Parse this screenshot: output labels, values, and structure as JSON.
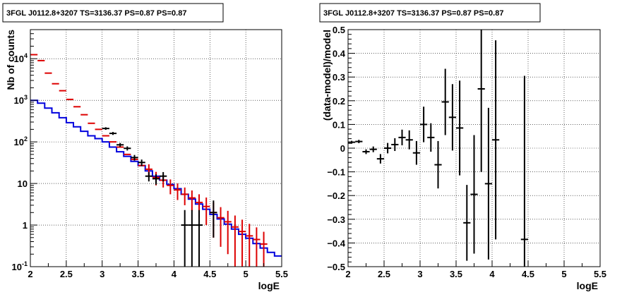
{
  "chart_data": [
    {
      "type": "scatter",
      "title": "3FGL J0112.8+3207 TS=3136.37 PS=0.87 PS=0.87",
      "xlabel": "logE",
      "ylabel": "Nb of counts",
      "xlim": [
        2,
        5.5
      ],
      "ylim": [
        0.1,
        50000
      ],
      "yscale": "log",
      "grid": true,
      "x_ticks": [
        2,
        2.5,
        3,
        3.5,
        4,
        4.5,
        5,
        5.5
      ],
      "x_tick_labels": [
        "2",
        "2.5",
        "3",
        "3.5",
        "4",
        "4.5",
        "5",
        "5.5"
      ],
      "y_ticks": [
        0.1,
        1,
        10,
        100,
        1000,
        10000
      ],
      "y_tick_labels": [
        {
          "base": "10",
          "exp": "-1"
        },
        {
          "base": "1",
          "exp": ""
        },
        {
          "base": "10",
          "exp": ""
        },
        {
          "base": "10",
          "exp": "2"
        },
        {
          "base": "10",
          "exp": "3"
        },
        {
          "base": "10",
          "exp": "4"
        }
      ],
      "series": [
        {
          "color": "#0000dd",
          "style": "step",
          "bin_width": 0.1,
          "x": [
            2.05,
            2.15,
            2.25,
            2.35,
            2.45,
            2.55,
            2.65,
            2.75,
            2.85,
            2.95,
            3.05,
            3.15,
            3.25,
            3.35,
            3.45,
            3.55,
            3.65,
            3.75,
            3.85,
            3.95,
            4.05,
            4.15,
            4.25,
            4.35,
            4.45,
            4.55,
            4.65,
            4.75,
            4.85,
            4.95,
            5.05,
            5.15,
            5.25,
            5.35,
            5.45
          ],
          "y": [
            1000,
            850,
            650,
            500,
            380,
            290,
            230,
            180,
            140,
            120,
            100,
            75,
            58,
            45,
            34,
            27,
            20,
            15,
            12,
            9.5,
            7.5,
            5.5,
            4.2,
            3.2,
            2.4,
            1.8,
            1.4,
            1.05,
            0.8,
            0.6,
            0.48,
            0.36,
            0.28,
            0.22,
            0.18
          ]
        },
        {
          "color": "#dd0000",
          "style": "errorbar",
          "x": [
            2.05,
            2.15,
            2.25,
            2.35,
            2.45,
            2.55,
            2.65,
            2.75,
            2.85,
            2.95,
            3.05,
            3.15,
            3.25,
            3.35,
            3.45,
            3.55,
            3.65,
            3.75,
            3.85,
            3.95,
            4.05,
            4.15,
            4.25,
            4.35,
            4.45,
            4.55,
            4.65,
            4.75,
            4.85,
            4.95,
            5.05,
            5.15,
            5.25
          ],
          "y": [
            12500,
            9000,
            4500,
            2500,
            1700,
            1050,
            700,
            450,
            280,
            200,
            140,
            100,
            75,
            50,
            38,
            27,
            22,
            14,
            12,
            9,
            7,
            5.5,
            4.5,
            3.5,
            2.8,
            2,
            1.5,
            1.2,
            0.9,
            0.7,
            0.55,
            0.45,
            0.35
          ],
          "err_low": [
            0,
            0,
            0,
            0,
            0,
            0,
            0,
            0,
            0,
            0,
            0,
            0,
            0,
            0,
            0,
            0,
            7,
            5,
            4,
            3.5,
            3,
            2.5,
            2.3,
            2,
            1.8,
            1.5,
            1.2,
            1.0,
            0.8,
            0.65,
            0.52,
            0.43,
            0.34
          ],
          "err_high": [
            0,
            0,
            0,
            0,
            0,
            0,
            0,
            0,
            0,
            0,
            0,
            0,
            0,
            0,
            0,
            0,
            7,
            5,
            4,
            3.5,
            3,
            2.5,
            2.3,
            2,
            1.8,
            1.5,
            1.2,
            1.0,
            0.8,
            0.65,
            0.52,
            0.43,
            0.34
          ]
        },
        {
          "color": "#000000",
          "style": "errorbar",
          "x": [
            3.05,
            3.15,
            3.25,
            3.35,
            3.45,
            3.55,
            3.65,
            3.75,
            3.85,
            4.15,
            4.25,
            4.35,
            4.55
          ],
          "y": [
            210,
            160,
            85,
            70,
            42,
            32,
            15,
            13,
            15,
            1,
            1,
            1,
            2
          ],
          "err_low": [
            15,
            13,
            9,
            8,
            6.5,
            5.6,
            3.8,
            3.6,
            3.8,
            0.95,
            0.95,
            0.95,
            1.5
          ],
          "err_high": [
            15,
            13,
            9,
            8,
            6.5,
            5.6,
            3.8,
            3.6,
            3.8,
            1.3,
            1.3,
            1.3,
            1.9
          ]
        }
      ]
    },
    {
      "type": "scatter",
      "title": "3FGL J0112.8+3207 TS=3136.37 PS=0.87 PS=0.87",
      "xlabel": "logE",
      "ylabel": "(data-model)/model",
      "xlim": [
        2,
        5.5
      ],
      "ylim": [
        -0.5,
        0.5
      ],
      "grid": true,
      "x_ticks": [
        2,
        2.5,
        3,
        3.5,
        4,
        4.5,
        5,
        5.5
      ],
      "x_tick_labels": [
        "2",
        "2.5",
        "3",
        "3.5",
        "4",
        "4.5",
        "5",
        "5.5"
      ],
      "y_ticks": [
        -0.5,
        -0.4,
        -0.3,
        -0.2,
        -0.1,
        0,
        0.1,
        0.2,
        0.3,
        0.4,
        0.5
      ],
      "y_tick_labels": [
        "−0.5",
        "−0.4",
        "−0.3",
        "−0.2",
        "−0.1",
        "0",
        "0.1",
        "0.2",
        "0.3",
        "0.4",
        "0.5"
      ],
      "series": [
        {
          "color": "#000000",
          "style": "errorbar",
          "x": [
            2.05,
            2.15,
            2.25,
            2.35,
            2.45,
            2.55,
            2.65,
            2.75,
            2.85,
            2.95,
            3.05,
            3.15,
            3.25,
            3.35,
            3.45,
            3.55,
            3.65,
            3.75,
            3.85,
            3.95,
            4.05,
            4.45
          ],
          "y": [
            0.025,
            0.028,
            -0.015,
            -0.005,
            -0.045,
            0.0,
            0.015,
            0.045,
            0.035,
            -0.02,
            0.1,
            0.045,
            -0.07,
            0.195,
            0.13,
            0.085,
            -0.315,
            -0.195,
            0.25,
            -0.15,
            0.035,
            -0.385
          ],
          "err": [
            0.006,
            0.007,
            0.01,
            0.012,
            0.02,
            0.022,
            0.027,
            0.033,
            0.04,
            0.05,
            0.075,
            0.06,
            0.1,
            0.14,
            0.14,
            0.2,
            0.16,
            0.25,
            0.35,
            0.32,
            0.42,
            0.69
          ]
        }
      ]
    }
  ]
}
